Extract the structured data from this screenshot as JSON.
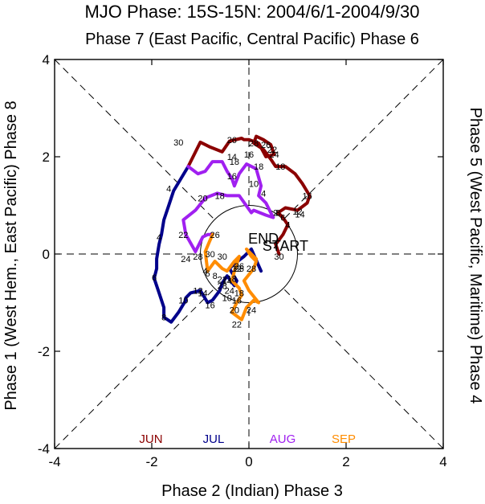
{
  "chart_data": {
    "type": "line",
    "title": "MJO Phase: 15S-15N: 2004/6/1-2004/9/30",
    "top_label": "Phase 7 (East Pacific, Central Pacific) Phase 6",
    "bottom_label": "Phase 2 (Indian) Phase 3",
    "left_label": "Phase 1 (West Hem., East Pacific) Phase 8",
    "right_label": "Phase 5 (West Pacific, Maritime) Phase 4",
    "xlim": [
      -4,
      4
    ],
    "ylim": [
      -4,
      4
    ],
    "x_ticks": [
      "-4",
      "-2",
      "0",
      "2",
      "4"
    ],
    "y_ticks": [
      "-4",
      "-2",
      "0",
      "2",
      "4"
    ],
    "unit_circle_radius": 1,
    "inner_text": [
      "END",
      "START"
    ],
    "legend": [
      {
        "name": "JUN",
        "color": "#8b0000"
      },
      {
        "name": "JUL",
        "color": "#00008b"
      },
      {
        "name": "AUG",
        "color": "#a020f0"
      },
      {
        "name": "SEP",
        "color": "#ff8c00"
      }
    ],
    "series": [
      {
        "name": "JUN",
        "color": "#8b0000",
        "x": [
          0.62,
          0.55,
          0.7,
          0.8,
          0.7,
          0.6,
          0.75,
          1.0,
          1.2,
          1.25,
          1.1,
          0.95,
          0.75,
          0.55,
          0.45,
          0.3,
          0.1,
          0.15,
          0.3,
          0.45,
          0.52,
          0.35,
          0.2,
          0.0,
          -0.1,
          -0.15,
          -0.4,
          -0.55,
          -0.8,
          -1.0,
          -1.25
        ],
        "y": [
          0.0,
          0.2,
          0.4,
          0.6,
          0.75,
          0.85,
          0.95,
          0.9,
          1.05,
          1.2,
          1.45,
          1.65,
          1.8,
          1.8,
          1.95,
          2.15,
          2.28,
          2.42,
          2.35,
          2.25,
          2.05,
          2.0,
          2.28,
          2.35,
          2.35,
          2.38,
          2.32,
          2.1,
          2.2,
          2.3,
          1.8
        ],
        "labels": [
          {
            "text": "30",
            "x": 0.62,
            "y": -0.05
          },
          {
            "text": "2",
            "x": 0.55,
            "y": 0.18
          },
          {
            "text": "4",
            "x": 0.8,
            "y": 0.6
          },
          {
            "text": "6",
            "x": 0.7,
            "y": 0.75
          },
          {
            "text": "8",
            "x": 0.6,
            "y": 0.85
          },
          {
            "text": "12",
            "x": 1.0,
            "y": 0.88
          },
          {
            "text": "14",
            "x": 1.05,
            "y": 0.82
          },
          {
            "text": "16",
            "x": 1.2,
            "y": 1.2
          },
          {
            "text": "18",
            "x": 0.65,
            "y": 1.8
          },
          {
            "text": "22",
            "x": 0.48,
            "y": 2.15
          },
          {
            "text": "24",
            "x": 0.52,
            "y": 2.05
          },
          {
            "text": "26",
            "x": 0.35,
            "y": 2.25
          },
          {
            "text": "28",
            "x": 0.1,
            "y": 2.28
          },
          {
            "text": "26",
            "x": -0.35,
            "y": 2.35
          },
          {
            "text": "30",
            "x": -1.45,
            "y": 2.3
          }
        ]
      },
      {
        "name": "JUL",
        "color": "#00008b",
        "x": [
          -1.25,
          -1.55,
          -1.65,
          -1.75,
          -1.8,
          -1.85,
          -1.9,
          -1.9,
          -1.95,
          -1.85,
          -1.75,
          -1.75,
          -1.6,
          -1.45,
          -1.3,
          -1.3,
          -1.2,
          -1.0,
          -0.85,
          -0.75,
          -0.6,
          -0.55,
          -0.45,
          -0.3,
          -0.25,
          -0.4,
          -0.3,
          -0.1,
          0.05,
          0.25
        ],
        "y": [
          1.8,
          1.3,
          1.0,
          0.7,
          0.4,
          0.2,
          -0.1,
          -0.3,
          -0.5,
          -0.8,
          -1.1,
          -1.3,
          -1.4,
          -1.2,
          -0.95,
          -0.9,
          -0.8,
          -0.75,
          -1.0,
          -0.95,
          -0.75,
          -0.6,
          -0.45,
          -0.65,
          -0.55,
          -0.3,
          -0.2,
          -0.05,
          0.1,
          -0.35
        ],
        "labels": [
          {
            "text": "4",
            "x": -1.65,
            "y": 1.35
          },
          {
            "text": "4",
            "x": -1.85,
            "y": 0.35
          },
          {
            "text": "6",
            "x": -1.95,
            "y": -0.48
          },
          {
            "text": "8",
            "x": -1.75,
            "y": -1.3
          },
          {
            "text": "10",
            "x": -1.35,
            "y": -0.95
          },
          {
            "text": "12",
            "x": -1.05,
            "y": -0.75
          },
          {
            "text": "14",
            "x": -0.95,
            "y": -0.8
          },
          {
            "text": "16",
            "x": -0.8,
            "y": -1.05
          },
          {
            "text": "18",
            "x": -0.35,
            "y": -0.5
          },
          {
            "text": "22",
            "x": -0.55,
            "y": -0.52
          },
          {
            "text": "24",
            "x": -0.4,
            "y": -0.75
          },
          {
            "text": "26",
            "x": -0.2,
            "y": -0.3
          },
          {
            "text": "28",
            "x": -0.55,
            "y": -0.65
          },
          {
            "text": "10",
            "x": -0.45,
            "y": -0.9
          }
        ]
      },
      {
        "name": "AUG",
        "color": "#a020f0",
        "x": [
          -1.25,
          -1.05,
          -0.9,
          -0.75,
          -0.55,
          -0.45,
          -0.35,
          -0.3,
          -0.2,
          -0.05,
          0.15,
          0.25,
          0.2,
          0.35,
          0.45,
          0.5,
          0.35,
          0.1,
          0.05,
          -0.2,
          -0.45,
          -0.65,
          -0.9,
          -1.1,
          -1.35,
          -1.3,
          -1.1,
          -0.95,
          -0.85,
          -0.75
        ],
        "y": [
          1.8,
          1.65,
          1.7,
          1.9,
          1.9,
          1.7,
          1.55,
          1.4,
          1.65,
          1.85,
          1.75,
          1.4,
          1.2,
          1.05,
          0.85,
          0.75,
          0.8,
          0.9,
          0.85,
          1.2,
          1.2,
          1.25,
          1.15,
          0.9,
          0.7,
          0.4,
          0.05,
          0.35,
          0.4,
          0.4
        ],
        "labels": [
          {
            "text": "20",
            "x": -0.95,
            "y": 1.15
          },
          {
            "text": "18",
            "x": -0.6,
            "y": 1.2
          },
          {
            "text": "16",
            "x": -0.35,
            "y": 1.6
          },
          {
            "text": "18",
            "x": -0.3,
            "y": 1.9
          },
          {
            "text": "14",
            "x": -0.35,
            "y": 2.0
          },
          {
            "text": "16",
            "x": 0.0,
            "y": 2.05
          },
          {
            "text": "18",
            "x": 0.2,
            "y": 1.8
          },
          {
            "text": "10",
            "x": 0.1,
            "y": 1.45
          },
          {
            "text": "4",
            "x": 0.3,
            "y": 1.25
          },
          {
            "text": "2",
            "x": 0.55,
            "y": 0.85
          },
          {
            "text": "22",
            "x": -1.35,
            "y": 0.4
          },
          {
            "text": "26",
            "x": -0.7,
            "y": 0.4
          },
          {
            "text": "24",
            "x": -1.3,
            "y": -0.1
          },
          {
            "text": "28",
            "x": -1.05,
            "y": -0.05
          },
          {
            "text": "30",
            "x": -0.8,
            "y": 0.0
          }
        ]
      },
      {
        "name": "SEP",
        "color": "#ff8c00",
        "x": [
          -0.75,
          -0.9,
          -0.85,
          -0.7,
          -0.55,
          -0.45,
          -0.3,
          -0.2,
          -0.3,
          -0.35,
          -0.2,
          -0.15,
          -0.25,
          -0.35,
          -0.15,
          -0.05,
          0.1,
          0.2,
          0.0,
          -0.1,
          0.1,
          0.15,
          0.05,
          -0.05,
          0.05,
          0.15
        ],
        "y": [
          0.4,
          0.05,
          -0.35,
          -0.15,
          -0.3,
          -0.35,
          -0.15,
          -0.05,
          -0.35,
          -0.55,
          -0.7,
          -0.85,
          -1.0,
          -1.2,
          -1.35,
          -1.1,
          -0.95,
          -1.0,
          -0.75,
          -0.55,
          -0.3,
          -0.15,
          -0.05,
          0.1,
          0.0,
          -0.1
        ],
        "labels": [
          {
            "text": "4",
            "x": -0.9,
            "y": -0.35
          },
          {
            "text": "6",
            "x": -0.85,
            "y": -0.4
          },
          {
            "text": "8",
            "x": -0.7,
            "y": -0.45
          },
          {
            "text": "12",
            "x": -0.25,
            "y": -0.3
          },
          {
            "text": "14",
            "x": -0.45,
            "y": -0.55
          },
          {
            "text": "16",
            "x": -0.25,
            "y": -0.95
          },
          {
            "text": "18",
            "x": -0.2,
            "y": -0.8
          },
          {
            "text": "20",
            "x": -0.3,
            "y": -1.15
          },
          {
            "text": "22",
            "x": -0.25,
            "y": -1.45
          },
          {
            "text": "24",
            "x": 0.05,
            "y": -1.15
          },
          {
            "text": "26",
            "x": -0.2,
            "y": -0.25
          },
          {
            "text": "28",
            "x": 0.05,
            "y": -0.3
          },
          {
            "text": "30",
            "x": -0.55,
            "y": -0.05
          }
        ]
      }
    ]
  }
}
